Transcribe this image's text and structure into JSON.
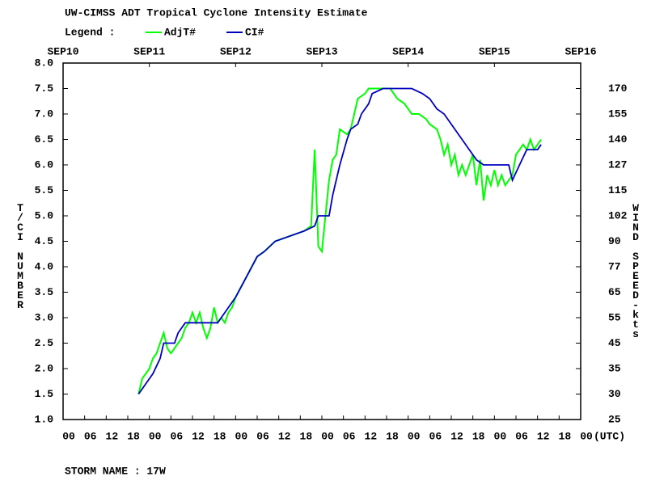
{
  "chart_data": {
    "type": "line",
    "title": "UW-CIMSS ADT Tropical Cyclone Intensity Estimate",
    "legend_label": "Legend :",
    "ylabel": "T/CI NUMBER",
    "y2label": "WIND SPEED-kts",
    "xunit_label": "(UTC)",
    "footer": "STORM NAME : 17W",
    "xlim": [
      "09-10T00:00",
      "09-16T00:00"
    ],
    "ylim": [
      1,
      8
    ],
    "xticks": [
      {
        "value": "09-10T00:00",
        "label": "00"
      },
      {
        "value": "09-10T06:00",
        "label": "06"
      },
      {
        "value": "09-10T12:00",
        "label": "12"
      },
      {
        "value": "09-10T18:00",
        "label": "18"
      },
      {
        "value": "09-11T00:00",
        "label": "00"
      },
      {
        "value": "09-11T06:00",
        "label": "06"
      },
      {
        "value": "09-11T12:00",
        "label": "12"
      },
      {
        "value": "09-11T18:00",
        "label": "18"
      },
      {
        "value": "09-12T00:00",
        "label": "00"
      },
      {
        "value": "09-12T06:00",
        "label": "06"
      },
      {
        "value": "09-12T12:00",
        "label": "12"
      },
      {
        "value": "09-12T18:00",
        "label": "18"
      },
      {
        "value": "09-13T00:00",
        "label": "00"
      },
      {
        "value": "09-13T06:00",
        "label": "06"
      },
      {
        "value": "09-13T12:00",
        "label": "12"
      },
      {
        "value": "09-13T18:00",
        "label": "18"
      },
      {
        "value": "09-14T00:00",
        "label": "00"
      },
      {
        "value": "09-14T06:00",
        "label": "06"
      },
      {
        "value": "09-14T12:00",
        "label": "12"
      },
      {
        "value": "09-14T18:00",
        "label": "18"
      },
      {
        "value": "09-15T00:00",
        "label": "00"
      },
      {
        "value": "09-15T06:00",
        "label": "06"
      },
      {
        "value": "09-15T12:00",
        "label": "12"
      },
      {
        "value": "09-15T18:00",
        "label": "18"
      },
      {
        "value": "09-16T00:00",
        "label": "00"
      }
    ],
    "top_xticks": [
      {
        "value": "09-10T00:00",
        "label": "SEP10"
      },
      {
        "value": "09-11T00:00",
        "label": "SEP11"
      },
      {
        "value": "09-12T00:00",
        "label": "SEP12"
      },
      {
        "value": "09-13T00:00",
        "label": "SEP13"
      },
      {
        "value": "09-14T00:00",
        "label": "SEP14"
      },
      {
        "value": "09-15T00:00",
        "label": "SEP15"
      },
      {
        "value": "09-16T00:00",
        "label": "SEP16"
      }
    ],
    "yticks": [
      {
        "value": 1,
        "label": "1.0"
      },
      {
        "value": 1.5,
        "label": "1.5"
      },
      {
        "value": 2,
        "label": "2.0"
      },
      {
        "value": 2.5,
        "label": "2.5"
      },
      {
        "value": 3,
        "label": "3.0"
      },
      {
        "value": 3.5,
        "label": "3.5"
      },
      {
        "value": 4,
        "label": "4.0"
      },
      {
        "value": 4.5,
        "label": "4.5"
      },
      {
        "value": 5,
        "label": "5.0"
      },
      {
        "value": 5.5,
        "label": "5.5"
      },
      {
        "value": 6,
        "label": "6.0"
      },
      {
        "value": 6.5,
        "label": "6.5"
      },
      {
        "value": 7,
        "label": "7.0"
      },
      {
        "value": 7.5,
        "label": "7.5"
      },
      {
        "value": 8,
        "label": "8.0"
      }
    ],
    "y2_tick_labels": [
      25,
      30,
      35,
      45,
      55,
      65,
      77,
      90,
      102,
      115,
      127,
      140,
      155,
      170
    ],
    "series": [
      {
        "name": "AdjT#",
        "color": "#00ff00",
        "x": [
          "09-10T21:00",
          "09-10T22:00",
          "09-10T23:00",
          "09-11T00:00",
          "09-11T01:00",
          "09-11T02:00",
          "09-11T03:00",
          "09-11T04:00",
          "09-11T05:00",
          "09-11T06:00",
          "09-11T07:00",
          "09-11T08:00",
          "09-11T09:00",
          "09-11T10:00",
          "09-11T11:00",
          "09-11T12:00",
          "09-11T13:00",
          "09-11T14:00",
          "09-11T15:00",
          "09-11T16:00",
          "09-11T17:00",
          "09-11T18:00",
          "09-11T19:00",
          "09-11T20:00",
          "09-11T21:00",
          "09-11T22:00",
          "09-11T23:00",
          "09-12T00:00",
          "09-12T03:00",
          "09-12T06:00",
          "09-12T08:00",
          "09-12T11:00",
          "09-12T15:00",
          "09-12T19:00",
          "09-12T21:00",
          "09-12T22:00",
          "09-12T23:00",
          "09-13T00:00",
          "09-13T01:00",
          "09-13T02:00",
          "09-13T03:00",
          "09-13T04:00",
          "09-13T05:00",
          "09-13T07:00",
          "09-13T08:00",
          "09-13T09:00",
          "09-13T10:00",
          "09-13T12:00",
          "09-13T13:00",
          "09-13T19:00",
          "09-13T21:00",
          "09-13T23:00",
          "09-14T01:00",
          "09-14T03:00",
          "09-14T05:00",
          "09-14T06:00",
          "09-14T08:00",
          "09-14T09:00",
          "09-14T10:00",
          "09-14T11:00",
          "09-14T12:00",
          "09-14T13:00",
          "09-14T14:00",
          "09-14T15:00",
          "09-14T16:00",
          "09-14T17:00",
          "09-14T18:00",
          "09-14T19:00",
          "09-14T20:00",
          "09-14T21:00",
          "09-14T22:00",
          "09-14T23:00",
          "09-15T00:00",
          "09-15T01:00",
          "09-15T02:00",
          "09-15T03:00",
          "09-15T05:00",
          "09-15T06:00",
          "09-15T08:00",
          "09-15T09:00",
          "09-15T10:00",
          "09-15T11:00",
          "09-15T12:00",
          "09-15T13:00"
        ],
        "values": [
          1.5,
          1.8,
          1.9,
          2.0,
          2.2,
          2.3,
          2.5,
          2.7,
          2.4,
          2.3,
          2.4,
          2.5,
          2.6,
          2.8,
          2.9,
          3.1,
          2.9,
          3.1,
          2.8,
          2.6,
          2.8,
          3.2,
          2.9,
          3.0,
          2.9,
          3.1,
          3.2,
          3.4,
          3.8,
          4.2,
          4.3,
          4.5,
          4.6,
          4.7,
          4.8,
          6.3,
          4.4,
          4.3,
          5.0,
          5.7,
          6.1,
          6.2,
          6.7,
          6.6,
          6.7,
          7.0,
          7.3,
          7.4,
          7.5,
          7.5,
          7.3,
          7.2,
          7.0,
          7.0,
          6.9,
          6.8,
          6.7,
          6.5,
          6.2,
          6.4,
          6.0,
          6.2,
          5.8,
          6.0,
          5.8,
          6.0,
          6.2,
          5.6,
          6.1,
          5.3,
          5.8,
          5.6,
          5.9,
          5.6,
          5.8,
          5.6,
          5.8,
          6.2,
          6.4,
          6.3,
          6.5,
          6.3,
          6.4,
          6.5
        ]
      },
      {
        "name": "CI#",
        "color": "#0000c0",
        "x": [
          "09-10T21:00",
          "09-10T22:00",
          "09-10T23:00",
          "09-11T01:00",
          "09-11T03:00",
          "09-11T04:00",
          "09-11T07:00",
          "09-11T08:00",
          "09-11T10:00",
          "09-11T19:00",
          "09-11T20:00",
          "09-11T22:00",
          "09-12T00:00",
          "09-12T03:00",
          "09-12T06:00",
          "09-12T08:00",
          "09-12T11:00",
          "09-12T15:00",
          "09-12T19:00",
          "09-12T22:00",
          "09-12T23:00",
          "09-13T02:00",
          "09-13T03:00",
          "09-13T05:00",
          "09-13T07:00",
          "09-13T08:00",
          "09-13T10:00",
          "09-13T11:00",
          "09-13T13:00",
          "09-13T14:00",
          "09-13T17:00",
          "09-14T01:00",
          "09-14T04:00",
          "09-14T06:00",
          "09-14T08:00",
          "09-14T10:00",
          "09-14T12:00",
          "09-14T15:00",
          "09-14T17:00",
          "09-14T19:00",
          "09-14T21:00",
          "09-15T04:00",
          "09-15T05:00",
          "09-15T07:00",
          "09-15T09:00",
          "09-15T12:00",
          "09-15T13:00"
        ],
        "values": [
          1.5,
          1.6,
          1.7,
          1.9,
          2.2,
          2.5,
          2.5,
          2.7,
          2.9,
          2.9,
          3.0,
          3.2,
          3.4,
          3.8,
          4.2,
          4.3,
          4.5,
          4.6,
          4.7,
          4.8,
          5.0,
          5.0,
          5.4,
          6.0,
          6.5,
          6.7,
          6.8,
          7.0,
          7.2,
          7.4,
          7.5,
          7.5,
          7.4,
          7.3,
          7.1,
          7.0,
          6.8,
          6.5,
          6.3,
          6.1,
          6.0,
          6.0,
          5.7,
          6.0,
          6.3,
          6.3,
          6.4
        ]
      }
    ]
  }
}
